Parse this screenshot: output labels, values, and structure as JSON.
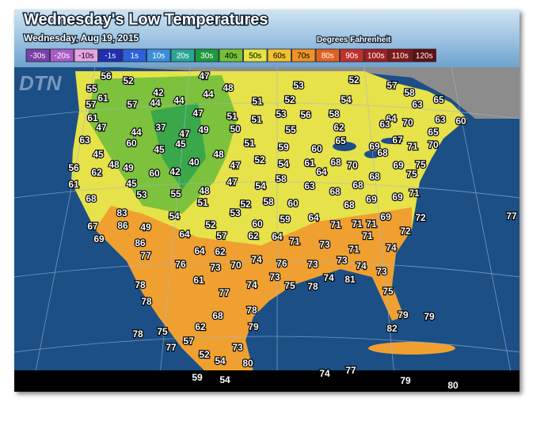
{
  "header": {
    "title": "Wednesday's Low Temperatures",
    "date": "Wednesday, Aug 19, 2015",
    "units": "Degrees Fahrenheit"
  },
  "legend": [
    {
      "label": "-30s",
      "color": "#7b3fa8"
    },
    {
      "label": "-20s",
      "color": "#a85cc8"
    },
    {
      "label": "-10s",
      "color": "#e7a6e0"
    },
    {
      "label": "-1s",
      "color": "#1f2fb0"
    },
    {
      "label": "1s",
      "color": "#2a62d8"
    },
    {
      "label": "10s",
      "color": "#3b8fd8"
    },
    {
      "label": "20s",
      "color": "#2aa596"
    },
    {
      "label": "30s",
      "color": "#1d9a3c"
    },
    {
      "label": "40s",
      "color": "#74c236"
    },
    {
      "label": "50s",
      "color": "#e4e442"
    },
    {
      "label": "60s",
      "color": "#f2c232"
    },
    {
      "label": "70s",
      "color": "#f09224"
    },
    {
      "label": "80s",
      "color": "#e0621e"
    },
    {
      "label": "90s",
      "color": "#c2302c"
    },
    {
      "label": "100s",
      "color": "#a02020"
    },
    {
      "label": "110s",
      "color": "#801818"
    },
    {
      "label": "120s",
      "color": "#601010"
    }
  ],
  "watermark": "DTN",
  "temperatures": [
    56,
    52,
    47,
    53,
    52,
    57,
    58,
    55,
    42,
    48,
    44,
    54,
    65,
    61,
    57,
    57,
    44,
    44,
    51,
    52,
    63,
    61,
    47,
    51,
    51,
    53,
    56,
    58,
    64,
    70,
    63,
    60,
    63,
    47,
    44,
    37,
    47,
    49,
    50,
    55,
    62,
    65,
    63,
    60,
    45,
    51,
    59,
    60,
    65,
    69,
    68,
    67,
    71,
    70,
    45,
    45,
    48,
    52,
    54,
    61,
    68,
    70,
    69,
    75,
    56,
    48,
    49,
    40,
    47,
    64,
    68,
    75,
    62,
    60,
    42,
    58,
    63,
    68,
    71,
    61,
    45,
    47,
    54,
    68,
    69,
    68,
    53,
    55,
    48,
    52,
    58,
    60,
    68,
    69,
    51,
    53,
    83,
    54,
    59,
    64,
    69,
    72,
    77,
    67,
    86,
    49,
    52,
    60,
    71,
    71,
    71,
    72,
    69,
    64,
    57,
    62,
    64,
    71,
    71,
    86,
    64,
    62,
    73,
    71,
    74,
    77,
    76,
    73,
    70,
    74,
    76,
    73,
    73,
    74,
    73,
    73,
    74,
    81,
    78,
    61,
    74,
    75,
    78,
    75,
    77,
    78,
    78,
    79,
    79,
    68,
    79,
    82,
    75,
    62,
    78,
    57,
    73,
    77,
    52,
    54,
    80,
    74,
    77,
    59,
    54,
    79,
    80
  ]
}
